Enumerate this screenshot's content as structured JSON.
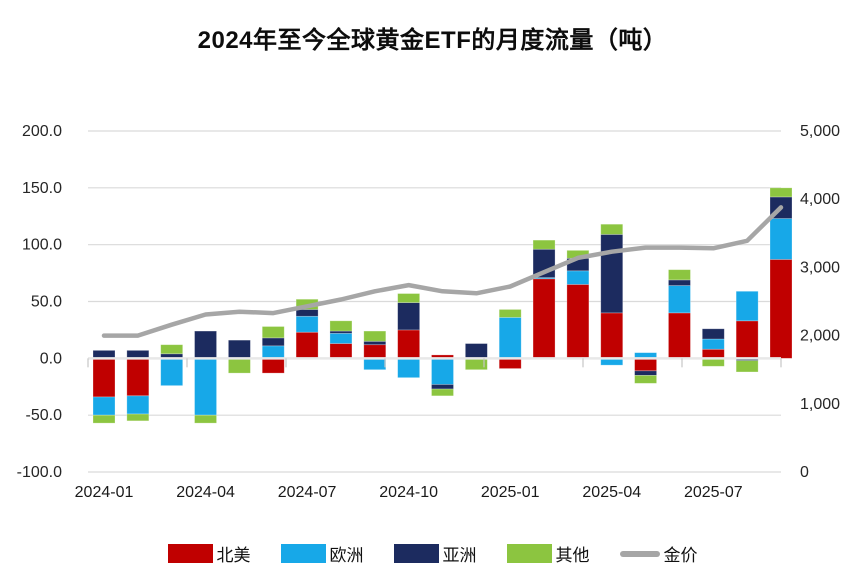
{
  "title": "2024年至今全球黄金ETF的月度流量（吨）",
  "legend": {
    "items": [
      {
        "label": "北美"
      },
      {
        "label": "欧洲"
      },
      {
        "label": "亚洲"
      },
      {
        "label": "其他"
      },
      {
        "label": "金价"
      }
    ]
  },
  "chart_data": {
    "type": "bar",
    "subtype": "stacked-column-with-line",
    "title": "2024年至今全球黄金ETF的月度流量（吨）",
    "categories": [
      "2024-01",
      "2024-02",
      "2024-03",
      "2024-04",
      "2024-05",
      "2024-06",
      "2024-07",
      "2024-08",
      "2024-09",
      "2024-10",
      "2024-11",
      "2024-12",
      "2025-01",
      "2025-02",
      "2025-03",
      "2025-04",
      "2025-05",
      "2025-06",
      "2025-07",
      "2025-08",
      "2025-09"
    ],
    "series": [
      {
        "name": "北美",
        "type": "bar",
        "color": "#C00000",
        "axis": "left",
        "values": [
          -34,
          -33,
          0,
          0,
          0,
          -13,
          23,
          13,
          12,
          25,
          3,
          0,
          -9,
          70,
          65,
          40,
          -11,
          40,
          8,
          33,
          87
        ]
      },
      {
        "name": "欧洲",
        "type": "bar",
        "color": "#17A8E8",
        "axis": "left",
        "values": [
          -16,
          -16,
          -24,
          -50,
          0,
          11,
          14,
          9,
          -10,
          -17,
          -23,
          0,
          36,
          1,
          12,
          -6,
          5,
          24,
          9,
          26,
          36
        ]
      },
      {
        "name": "亚洲",
        "type": "bar",
        "color": "#1C2B5F",
        "axis": "left",
        "values": [
          7,
          7,
          4,
          24,
          16,
          7,
          6,
          2,
          3,
          24,
          -4,
          13,
          0,
          25,
          11,
          69,
          -4,
          5,
          9,
          -2,
          19
        ]
      },
      {
        "name": "其他",
        "type": "bar",
        "color": "#8CC540",
        "axis": "left",
        "values": [
          -7,
          -6,
          8,
          -7,
          -13,
          10,
          9,
          9,
          9,
          8,
          -6,
          -10,
          7,
          8,
          7,
          9,
          -7,
          9,
          -7,
          -10,
          8
        ]
      },
      {
        "name": "金价",
        "type": "line",
        "color": "#A6A6A6",
        "axis": "right",
        "values": [
          2000,
          2000,
          2160,
          2310,
          2350,
          2330,
          2430,
          2530,
          2650,
          2740,
          2650,
          2620,
          2720,
          2930,
          3140,
          3230,
          3290,
          3290,
          3280,
          3390,
          3880
        ]
      }
    ],
    "left_axis": {
      "min": -100,
      "max": 200,
      "step": 50,
      "tick_labels": [
        "200.0",
        "150.0",
        "100.0",
        "50.0",
        "0.0",
        "-50.0",
        "-100.0"
      ]
    },
    "right_axis": {
      "min": 0,
      "max": 5000,
      "step": 1000,
      "tick_labels": [
        "5,000",
        "4,000",
        "3,000",
        "2,000",
        "1,000",
        "0"
      ]
    },
    "x_tick_labels": [
      "2024-01",
      "2024-04",
      "2024-07",
      "2024-10",
      "2025-01",
      "2025-04",
      "2025-07"
    ],
    "x_label_category_indexes": [
      0,
      3,
      6,
      9,
      12,
      15,
      18
    ],
    "grid": true,
    "gridline_color": "#DADADA",
    "legend_position": "bottom"
  }
}
